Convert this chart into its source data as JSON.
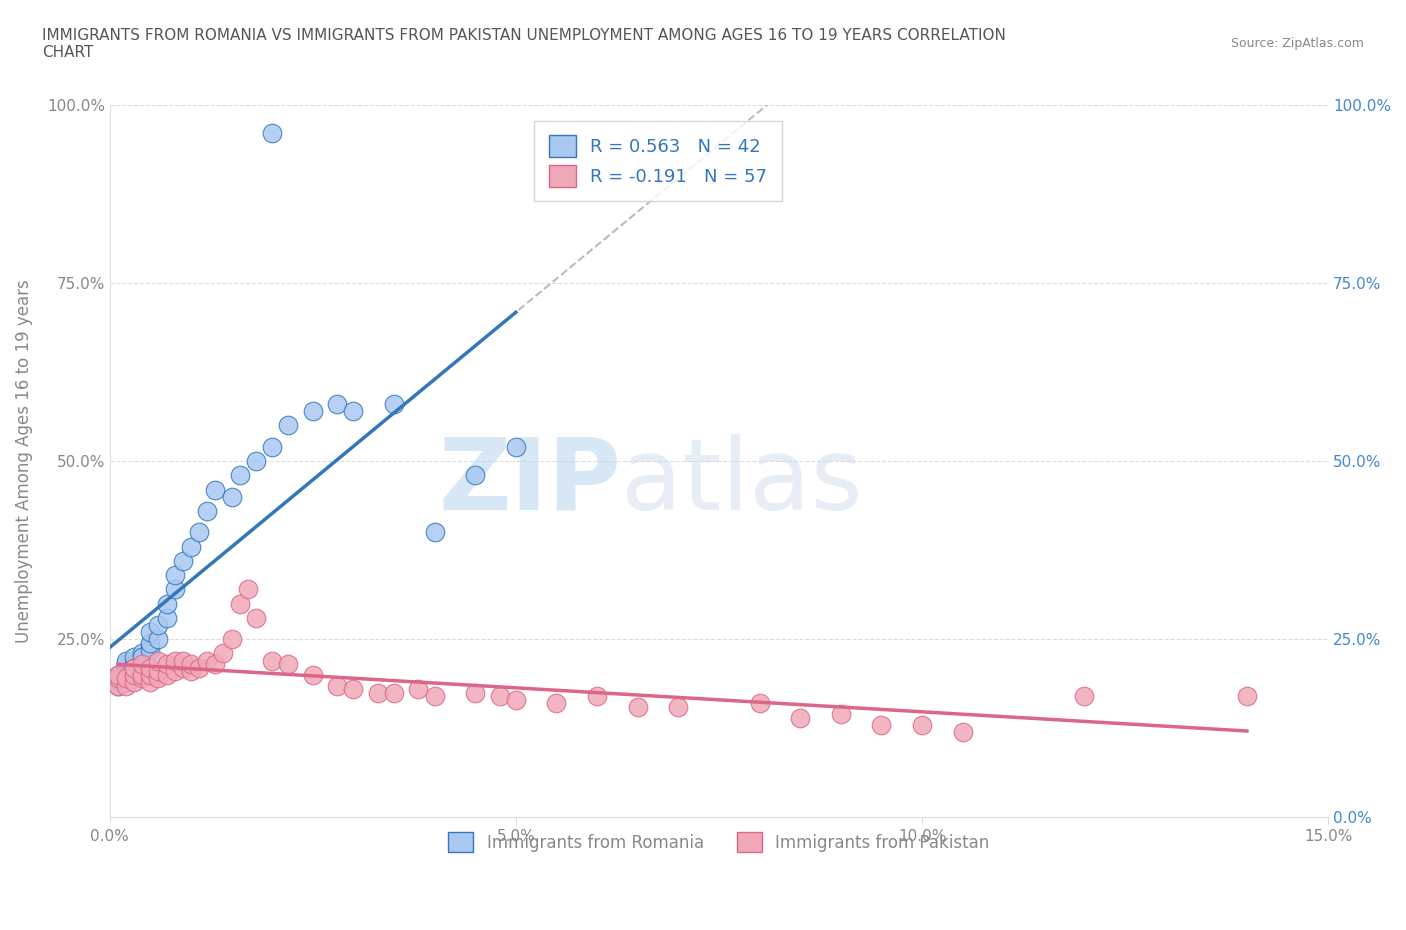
{
  "title": "IMMIGRANTS FROM ROMANIA VS IMMIGRANTS FROM PAKISTAN UNEMPLOYMENT AMONG AGES 16 TO 19 YEARS CORRELATION\nCHART",
  "source": "Source: ZipAtlas.com",
  "ylabel": "Unemployment Among Ages 16 to 19 years",
  "xlim": [
    0.0,
    0.15
  ],
  "ylim": [
    0.0,
    1.0
  ],
  "xticks": [
    0.0,
    0.05,
    0.1,
    0.15
  ],
  "xticklabels": [
    "0.0%",
    "5.0%",
    "10.0%",
    "15.0%"
  ],
  "yticks": [
    0.0,
    0.25,
    0.5,
    0.75,
    1.0
  ],
  "yticklabels": [
    "",
    "25.0%",
    "50.0%",
    "75.0%",
    "100.0%"
  ],
  "right_yticklabels": [
    "0.0%",
    "25.0%",
    "50.0%",
    "75.0%",
    "100.0%"
  ],
  "watermark_zip": "ZIP",
  "watermark_atlas": "atlas",
  "romania_color": "#a8c8f0",
  "pakistan_color": "#f0a8b8",
  "romania_trend_color": "#3377bb",
  "pakistan_trend_color": "#dd6688",
  "romania_R": 0.563,
  "romania_N": 42,
  "pakistan_R": -0.191,
  "pakistan_N": 57,
  "legend_label_romania": "Immigrants from Romania",
  "legend_label_pakistan": "Immigrants from Pakistan",
  "title_color": "#555555",
  "axis_color": "#888888",
  "grid_color": "#dddddd",
  "romania_scatter_x": [
    0.001,
    0.001,
    0.001,
    0.002,
    0.002,
    0.002,
    0.002,
    0.003,
    0.003,
    0.003,
    0.003,
    0.004,
    0.004,
    0.004,
    0.005,
    0.005,
    0.005,
    0.005,
    0.006,
    0.006,
    0.007,
    0.007,
    0.008,
    0.008,
    0.009,
    0.01,
    0.011,
    0.012,
    0.013,
    0.015,
    0.016,
    0.018,
    0.02,
    0.022,
    0.025,
    0.028,
    0.03,
    0.035,
    0.04,
    0.045,
    0.05,
    0.02
  ],
  "romania_scatter_y": [
    0.185,
    0.195,
    0.2,
    0.19,
    0.21,
    0.215,
    0.22,
    0.2,
    0.215,
    0.225,
    0.21,
    0.22,
    0.23,
    0.225,
    0.24,
    0.235,
    0.245,
    0.26,
    0.25,
    0.27,
    0.28,
    0.3,
    0.32,
    0.34,
    0.36,
    0.38,
    0.4,
    0.43,
    0.46,
    0.45,
    0.48,
    0.5,
    0.52,
    0.55,
    0.57,
    0.58,
    0.57,
    0.58,
    0.4,
    0.48,
    0.52,
    0.96
  ],
  "pakistan_scatter_x": [
    0.001,
    0.001,
    0.001,
    0.002,
    0.002,
    0.003,
    0.003,
    0.003,
    0.004,
    0.004,
    0.004,
    0.005,
    0.005,
    0.005,
    0.006,
    0.006,
    0.006,
    0.007,
    0.007,
    0.008,
    0.008,
    0.009,
    0.009,
    0.01,
    0.01,
    0.011,
    0.012,
    0.013,
    0.014,
    0.015,
    0.016,
    0.017,
    0.018,
    0.02,
    0.022,
    0.025,
    0.028,
    0.03,
    0.033,
    0.035,
    0.038,
    0.04,
    0.045,
    0.048,
    0.05,
    0.055,
    0.06,
    0.065,
    0.07,
    0.08,
    0.085,
    0.09,
    0.095,
    0.1,
    0.105,
    0.12,
    0.14
  ],
  "pakistan_scatter_y": [
    0.185,
    0.195,
    0.2,
    0.185,
    0.195,
    0.19,
    0.2,
    0.21,
    0.195,
    0.2,
    0.215,
    0.19,
    0.2,
    0.21,
    0.195,
    0.205,
    0.22,
    0.2,
    0.215,
    0.205,
    0.22,
    0.21,
    0.22,
    0.205,
    0.215,
    0.21,
    0.22,
    0.215,
    0.23,
    0.25,
    0.3,
    0.32,
    0.28,
    0.22,
    0.215,
    0.2,
    0.185,
    0.18,
    0.175,
    0.175,
    0.18,
    0.17,
    0.175,
    0.17,
    0.165,
    0.16,
    0.17,
    0.155,
    0.155,
    0.16,
    0.14,
    0.145,
    0.13,
    0.13,
    0.12,
    0.17,
    0.17
  ]
}
